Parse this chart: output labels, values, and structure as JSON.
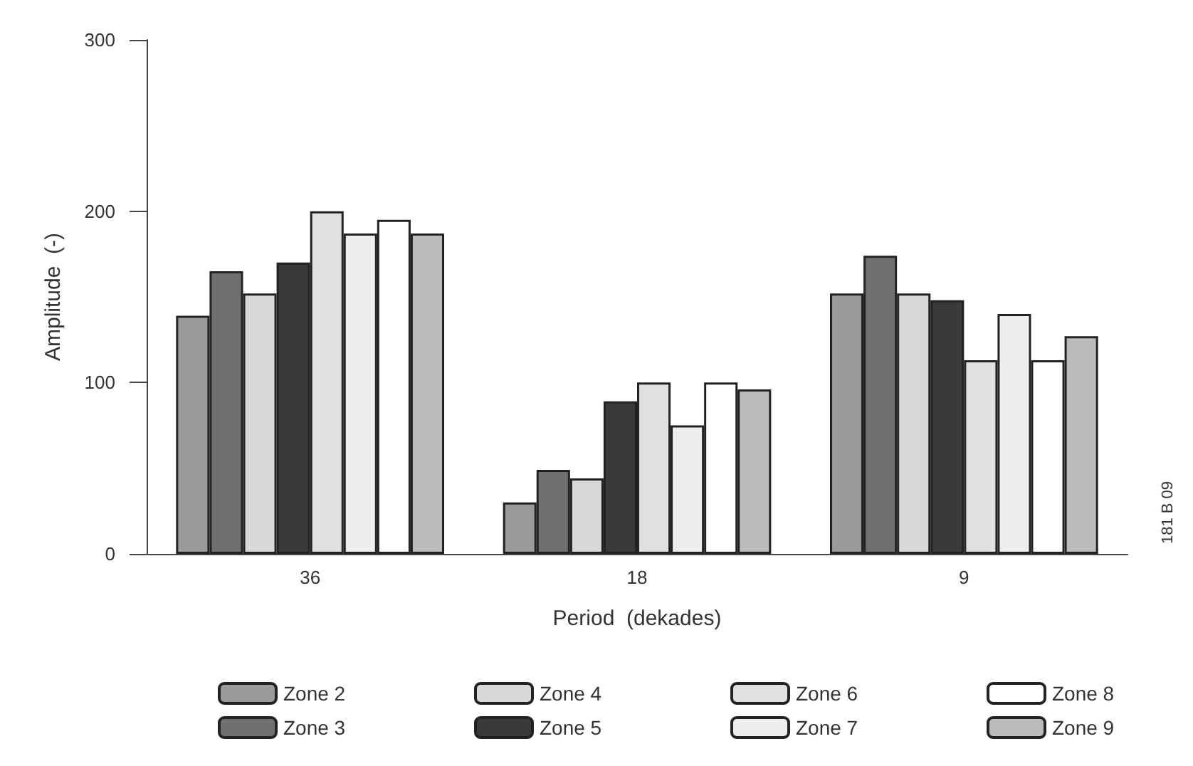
{
  "chart_data": {
    "type": "bar",
    "xlabel": "Period  (dekades)",
    "ylabel": "Amplitude  (-)",
    "categories": [
      "36",
      "18",
      "9"
    ],
    "series": [
      {
        "name": "Zone 2",
        "color": "#9a9a9a",
        "values": [
          139,
          30,
          152
        ]
      },
      {
        "name": "Zone 3",
        "color": "#707070",
        "values": [
          165,
          49,
          174
        ]
      },
      {
        "name": "Zone 4",
        "color": "#d8d8d8",
        "values": [
          152,
          44,
          152
        ]
      },
      {
        "name": "Zone 5",
        "color": "#3a3a3a",
        "values": [
          170,
          89,
          148
        ]
      },
      {
        "name": "Zone 6",
        "color": "#e0e0e0",
        "values": [
          200,
          100,
          113
        ]
      },
      {
        "name": "Zone 7",
        "color": "#eeeeee",
        "values": [
          187,
          75,
          140
        ]
      },
      {
        "name": "Zone 8",
        "color": "#ffffff",
        "values": [
          195,
          100,
          113
        ]
      },
      {
        "name": "Zone 9",
        "color": "#bcbcbc",
        "values": [
          187,
          96,
          127
        ]
      }
    ],
    "ylim": [
      0,
      300
    ],
    "yticks": [
      0,
      100,
      200,
      300
    ],
    "grid": false,
    "legend": "bottom",
    "annotations": [
      "181 B 09"
    ]
  }
}
